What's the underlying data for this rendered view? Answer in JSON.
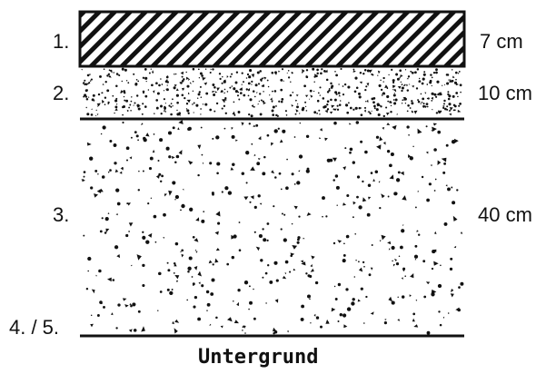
{
  "layers": [
    {
      "index_label": "1.",
      "thickness_label": "7 cm",
      "pattern": "hatched"
    },
    {
      "index_label": "2.",
      "thickness_label": "10 cm",
      "pattern": "fine-speckle"
    },
    {
      "index_label": "3.",
      "thickness_label": "40 cm",
      "pattern": "coarse-speckle"
    }
  ],
  "base_label": "4. / 5.",
  "subgrade_label": "Untergrund",
  "colors": {
    "ink": "#111111",
    "background": "#ffffff"
  }
}
